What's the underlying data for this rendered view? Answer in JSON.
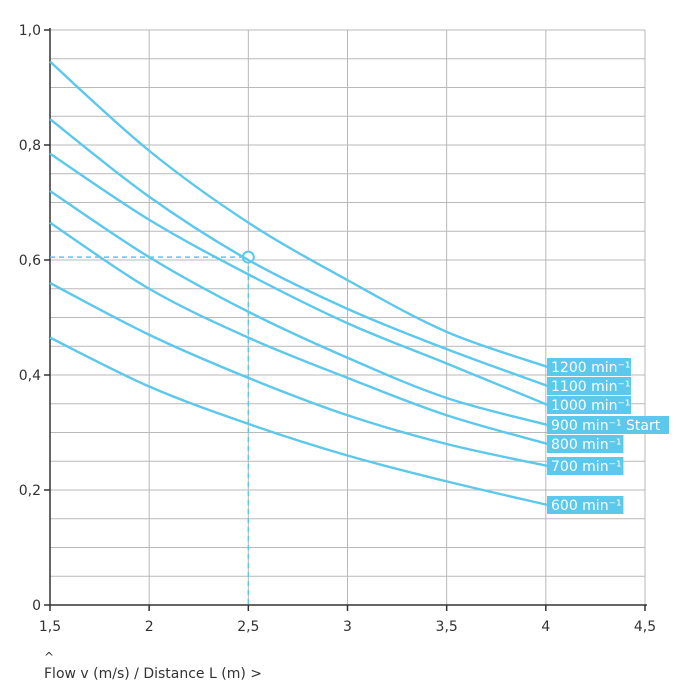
{
  "chart_data": {
    "type": "line",
    "title": "",
    "xlabel": "Flow v (m/s) / Distance L (m) >",
    "ylabel": "",
    "xlim": [
      1.5,
      4.5
    ],
    "ylim": [
      0,
      1.0
    ],
    "x_ticks": [
      "1,5",
      "2",
      "2,5",
      "3",
      "3,5",
      "4",
      "4,5"
    ],
    "y_ticks": [
      "0",
      "0,2",
      "0,4",
      "0,6",
      "0,8",
      "1,0"
    ],
    "grid": true,
    "line_color": "#5bc8ec",
    "series": [
      {
        "name": "1200 min⁻¹",
        "x": [
          1.5,
          2,
          2.5,
          3,
          3.5,
          4
        ],
        "values": [
          0.945,
          0.79,
          0.665,
          0.565,
          0.475,
          0.4
        ]
      },
      {
        "name": "1100 min⁻¹",
        "x": [
          1.5,
          2,
          2.5,
          3,
          3.5,
          4
        ],
        "values": [
          0.845,
          0.71,
          0.6,
          0.515,
          0.445,
          0.385
        ]
      },
      {
        "name": "1000 min⁻¹",
        "x": [
          1.5,
          2,
          2.5,
          3,
          3.5,
          4
        ],
        "values": [
          0.785,
          0.67,
          0.575,
          0.49,
          0.42,
          0.355
        ]
      },
      {
        "name": "900 min⁻¹ Start",
        "x": [
          1.5,
          2,
          2.5,
          3,
          3.5,
          4
        ],
        "values": [
          0.72,
          0.605,
          0.51,
          0.43,
          0.36,
          0.3
        ]
      },
      {
        "name": "800 min⁻¹",
        "x": [
          1.5,
          2,
          2.5,
          3,
          3.5,
          4
        ],
        "values": [
          0.665,
          0.55,
          0.465,
          0.395,
          0.33,
          0.285
        ]
      },
      {
        "name": "700 min⁻¹",
        "x": [
          1.5,
          2,
          2.5,
          3,
          3.5,
          4
        ],
        "values": [
          0.56,
          0.47,
          0.395,
          0.33,
          0.28,
          0.24
        ]
      },
      {
        "name": "600 min⁻¹",
        "x": [
          1.5,
          2,
          2.5,
          3,
          3.5,
          4
        ],
        "values": [
          0.465,
          0.38,
          0.315,
          0.26,
          0.215,
          0.17
        ]
      }
    ],
    "annotation": {
      "x": 2.5,
      "y": 0.605
    }
  }
}
